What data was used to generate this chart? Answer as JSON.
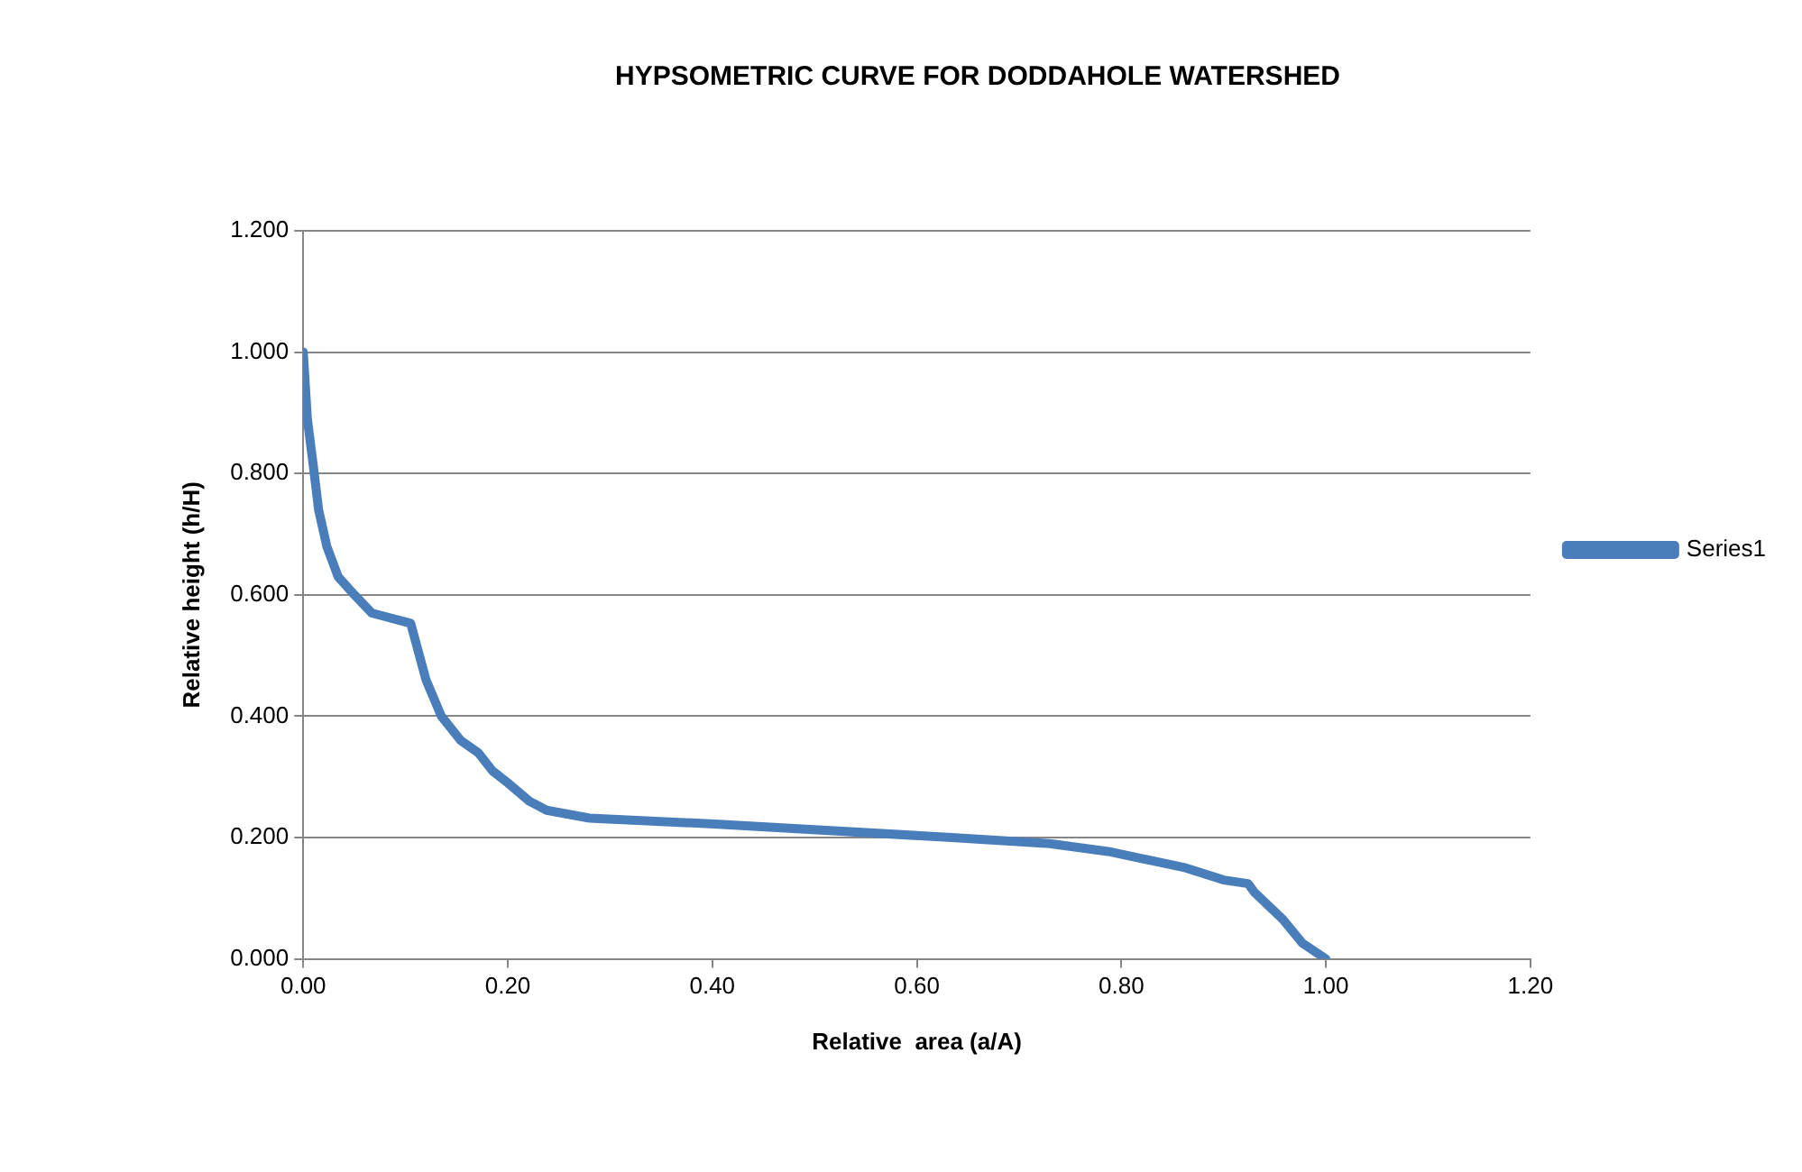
{
  "chart_data": {
    "type": "line",
    "title": "HYPSOMETRIC CURVE FOR DODDAHOLE WATERSHED",
    "xlabel": "Relative  area (a/A)",
    "ylabel": "Relative height (h/H)",
    "series": [
      {
        "name": "Series1",
        "color": "#4a7ebb",
        "x": [
          0,
          0.004,
          0.01,
          0.015,
          0.023,
          0.034,
          0.05,
          0.067,
          0.105,
          0.12,
          0.135,
          0.154,
          0.171,
          0.185,
          0.2,
          0.221,
          0.238,
          0.28,
          0.406,
          0.634,
          0.73,
          0.787,
          0.863,
          0.9,
          0.924,
          0.93,
          0.958,
          0.977,
          1.0
        ],
        "values": [
          1.0,
          0.89,
          0.81,
          0.74,
          0.68,
          0.63,
          0.6,
          0.57,
          0.553,
          0.46,
          0.4,
          0.36,
          0.34,
          0.31,
          0.29,
          0.26,
          0.245,
          0.232,
          0.222,
          0.2,
          0.19,
          0.177,
          0.15,
          0.13,
          0.124,
          0.11,
          0.065,
          0.026,
          0
        ]
      }
    ],
    "xlim": [
      0,
      1.2
    ],
    "xticks": [
      {
        "value": 0,
        "label": "0.00"
      },
      {
        "value": 0.2,
        "label": "0.20"
      },
      {
        "value": 0.4,
        "label": "0.40"
      },
      {
        "value": 0.6,
        "label": "0.60"
      },
      {
        "value": 0.8,
        "label": "0.80"
      },
      {
        "value": 1,
        "label": "1.00"
      },
      {
        "value": 1.2,
        "label": "1.20"
      }
    ],
    "ylim": [
      0,
      1.2
    ],
    "yticks": [
      {
        "value": 0,
        "label": "0.000"
      },
      {
        "value": 0.2,
        "label": "0.200"
      },
      {
        "value": 0.4,
        "label": "0.400"
      },
      {
        "value": 0.6,
        "label": "0.600"
      },
      {
        "value": 0.8,
        "label": "0.800"
      },
      {
        "value": 1,
        "label": "1.000"
      },
      {
        "value": 1.2,
        "label": "1.200"
      }
    ],
    "grid": "y",
    "legend": "right",
    "marker": "none",
    "line_style": "solid"
  }
}
